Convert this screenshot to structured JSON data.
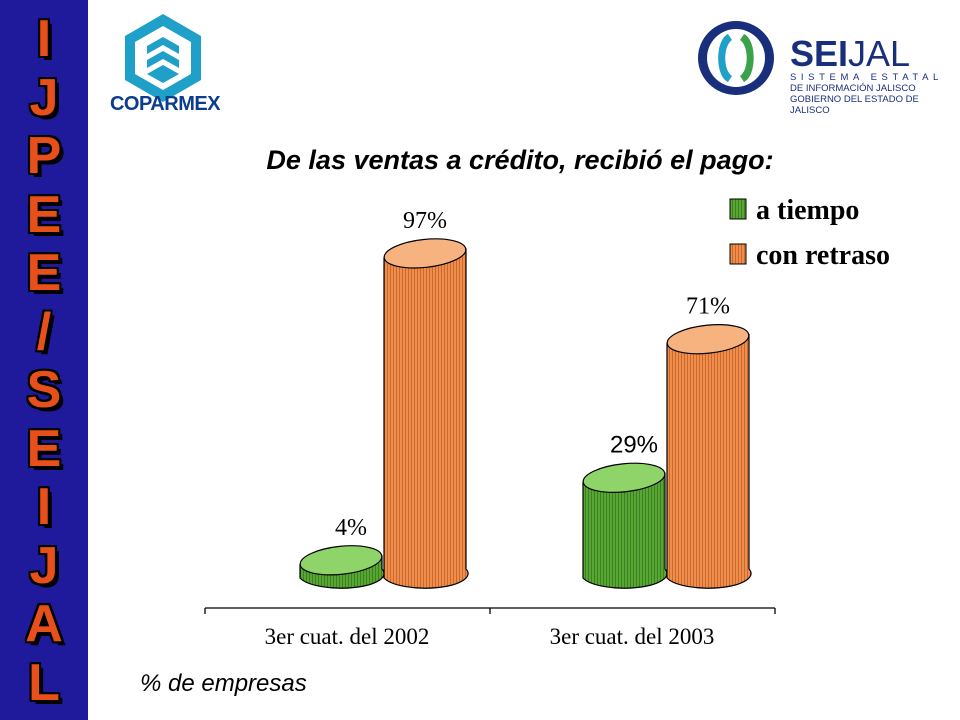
{
  "sidebar": {
    "letters": [
      "I",
      "J",
      "P",
      "E",
      "E",
      "/",
      "S",
      "E",
      "I",
      "J",
      "A",
      "L"
    ]
  },
  "logos": {
    "coparmex": "COPARMEX",
    "seijal_bold": "SEI",
    "seijal_light": "JAL",
    "seijal_sub1": "SISTEMA ESTATAL",
    "seijal_sub2": "DE INFORMACIÓN JALISCO",
    "seijal_sub3": "GOBIERNO DEL ESTADO DE JALISCO"
  },
  "colors": {
    "sidebar": "#1f1a9b",
    "letters": "#e8501b",
    "green": "#56a832",
    "orange": "#f08d4a"
  },
  "chart_data": {
    "type": "bar",
    "title": "De las ventas a crédito, recibió el pago:",
    "categories": [
      "3er cuat. del 2002",
      "3er cuat. del 2003"
    ],
    "series": [
      {
        "name": "a tiempo",
        "values": [
          4,
          29
        ],
        "labels": [
          "4%",
          "29%"
        ],
        "color": "#56a832"
      },
      {
        "name": "con retraso",
        "values": [
          97,
          71
        ],
        "labels": [
          "97%",
          "71%"
        ],
        "color": "#f08d4a"
      }
    ],
    "ylim": [
      0,
      100
    ],
    "legend": "top-right",
    "grid": false
  },
  "footnote": "% de empresas"
}
